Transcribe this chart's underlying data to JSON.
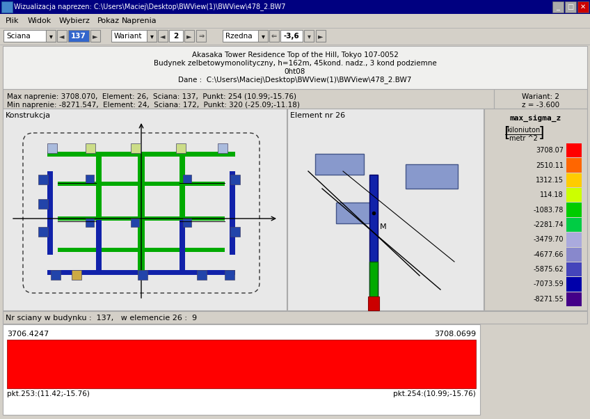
{
  "title_bar": "Wizualizacja naprezen: C:\\Users\\Maciej\\Desktop\\BWView(1)\\BWView\\478_2.BW7",
  "menu_items": [
    "Plik",
    "Widok",
    "Wybierz",
    "Pokaz",
    "Naprenia"
  ],
  "toolbar_sciana": "Sciana",
  "toolbar_sciana_val": "137",
  "toolbar_wariant": "Wariant",
  "toolbar_wariant_val": "2",
  "toolbar_rzedna": "Rzedna",
  "toolbar_rzedna_val": "-3,6",
  "info_line1": "Akasaka Tower Residence Top of the Hill, Tokyo 107-0052",
  "info_line2": "Budynek zelbetowymonolityczny, h=162m, 45kond. nadz., 3 kond podziemne",
  "info_line3": "0ht08",
  "info_line4": "Dane :  C:\\Users\\Maciej\\Desktop\\BWView(1)\\BWView\\478_2.BW7",
  "max_info": "Max naprenie: 3708.070,  Element: 26,  Sciana: 137,  Punkt: 254 (10.99;-15.76)",
  "min_info": "Min naprenie: -8271.547,  Element: 24,  Sciana: 172,  Punkt: 320 (-25.09;-11.18)",
  "wariant_info": "Wariant: 2",
  "z_info": "z = -3.600",
  "left_panel_title": "Konstrukcja",
  "right_panel_title": "Element nr 26",
  "status_text": "Nr sciany w budynku :  137,   w elemencie 26 :  9",
  "bar_left_val": "3706.4247",
  "bar_right_val": "3708.0699",
  "bar_left_pt": "pkt.253:(11.42;-15.76)",
  "bar_right_pt": "pkt.254:(10.99;-15.76)",
  "bar_color": "#ff0000",
  "legend_title1": "max_sigma_z",
  "legend_unit1": "kiloniuton",
  "legend_unit2": "metr ^2",
  "legend_values": [
    "3708.07",
    "2510.11",
    "1312.15",
    "114.18",
    "-1083.78",
    "-2281.74",
    "-3479.70",
    "-4677.66",
    "-5875.62",
    "-7073.59",
    "-8271.55"
  ],
  "legend_colors": [
    "#ff0000",
    "#ff6600",
    "#ffcc00",
    "#ccff00",
    "#00cc00",
    "#00cc44",
    "#aaaadd",
    "#8888cc",
    "#4444bb",
    "#0000aa",
    "#440088"
  ],
  "bg_color": "#d4d0c8",
  "titlebar_color": "#000080",
  "panel_bg": "#f0f0f0",
  "white": "#ffffff"
}
